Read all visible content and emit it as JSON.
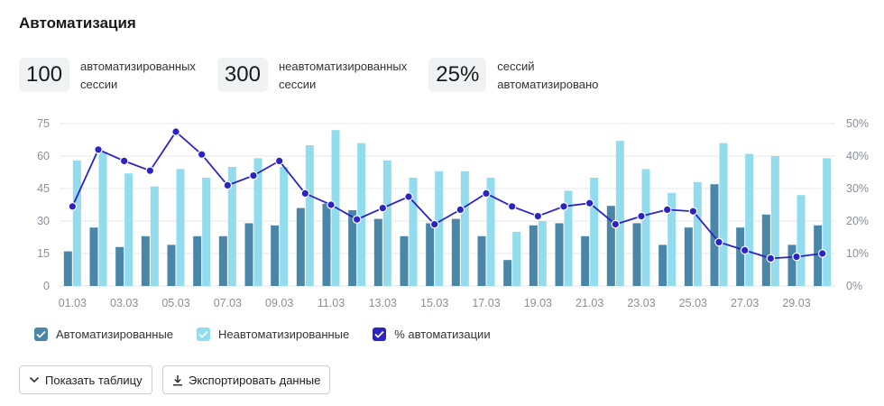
{
  "header": {
    "title": "Автоматизация"
  },
  "stats": [
    {
      "value": "100",
      "label_line1": "автоматизированных",
      "label_line2": "сессии"
    },
    {
      "value": "300",
      "label_line1": "неавтоматизированных",
      "label_line2": "сессии"
    },
    {
      "value": "25%",
      "label_line1": "сессий",
      "label_line2": "автоматизировано"
    }
  ],
  "legend": {
    "auto": "Автоматизированные",
    "nonauto": "Неавтоматизированные",
    "pct": "% автоматизации"
  },
  "buttons": {
    "show_table": "Показать таблицу",
    "export": "Экспортировать данные"
  },
  "colors": {
    "auto": "#4a86a8",
    "nonauto": "#93dcee",
    "pct": "#2b23c4"
  },
  "chart_data": {
    "type": "bar",
    "categories": [
      "01.03",
      "02.03",
      "03.03",
      "04.03",
      "05.03",
      "06.03",
      "07.03",
      "08.03",
      "09.03",
      "10.03",
      "11.03",
      "12.03",
      "13.03",
      "14.03",
      "15.03",
      "16.03",
      "17.03",
      "18.03",
      "19.03",
      "20.03",
      "21.03",
      "22.03",
      "23.03",
      "24.03",
      "25.03",
      "26.03",
      "27.03",
      "28.03",
      "29.03",
      "30.03"
    ],
    "x_tick_labels": [
      "01.03",
      "03.03",
      "05.03",
      "07.03",
      "09.03",
      "11.03",
      "13.03",
      "15.03",
      "17.03",
      "19.03",
      "21.03",
      "23.03",
      "25.03",
      "27.03",
      "29.03"
    ],
    "series": [
      {
        "name": "Автоматизированные",
        "axis": "left",
        "values": [
          16,
          27,
          18,
          23,
          19,
          23,
          23,
          29,
          28,
          36,
          38,
          35,
          31,
          23,
          29,
          31,
          23,
          12,
          28,
          29,
          23,
          37,
          29,
          19,
          27,
          47,
          27,
          33,
          19,
          28
        ]
      },
      {
        "name": "Неавтоматизированные",
        "axis": "left",
        "values": [
          58,
          62,
          52,
          46,
          54,
          50,
          55,
          59,
          55,
          65,
          72,
          66,
          58,
          50,
          53,
          53,
          50,
          25,
          30,
          44,
          50,
          67,
          54,
          43,
          48,
          66,
          61,
          60,
          42,
          59
        ]
      },
      {
        "name": "% автоматизации",
        "axis": "right",
        "type": "line",
        "values": [
          24.5,
          42,
          38.5,
          35.5,
          47.5,
          40.5,
          31,
          34,
          38.5,
          28.5,
          25,
          20.5,
          24,
          27.5,
          19,
          23.5,
          28.5,
          24.5,
          21.5,
          24.5,
          25.5,
          19,
          21.5,
          23.5,
          23,
          13.5,
          11,
          8.5,
          9,
          10
        ]
      }
    ],
    "ylim_left": [
      0,
      75
    ],
    "yticks_left": [
      "0",
      "15",
      "30",
      "45",
      "60",
      "75"
    ],
    "ylim_right": [
      0,
      50
    ],
    "yticks_right": [
      "0%",
      "10%",
      "20%",
      "30%",
      "40%",
      "50%"
    ],
    "grid": true
  }
}
